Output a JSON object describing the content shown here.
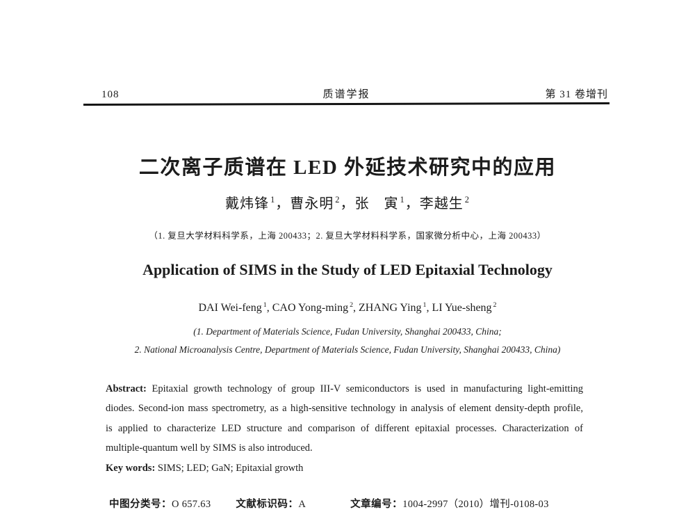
{
  "header": {
    "page_number": "108",
    "journal_title": "质谱学报",
    "issue_info": "第 31 卷增刊"
  },
  "chinese": {
    "title": "二次离子质谱在 LED 外延技术研究中的应用",
    "authors": [
      {
        "name": "戴炜锋",
        "sup": "1",
        "sep": "，"
      },
      {
        "name": "曹永明",
        "sup": "2",
        "sep": "，"
      },
      {
        "name": "张　寅",
        "sup": "1",
        "sep": "，"
      },
      {
        "name": "李越生",
        "sup": "2",
        "sep": ""
      }
    ],
    "affiliation": "（1. 复旦大学材料科学系，上海 200433；2. 复旦大学材料科学系，国家微分析中心，上海 200433）"
  },
  "english": {
    "title": "Application of SIMS in the Study of LED Epitaxial Technology",
    "authors": [
      {
        "name": "DAI Wei-feng",
        "sup": "1",
        "sep": ", "
      },
      {
        "name": "CAO Yong-ming",
        "sup": "2",
        "sep": ", "
      },
      {
        "name": "ZHANG Ying",
        "sup": "1",
        "sep": ", "
      },
      {
        "name": "LI Yue-sheng",
        "sup": "2",
        "sep": ""
      }
    ],
    "affiliation_line1": "(1. Department of Materials Science, Fudan University, Shanghai 200433, China;",
    "affiliation_line2": "2. National Microanalysis Centre, Department of Materials Science, Fudan University, Shanghai 200433, China)"
  },
  "abstract": {
    "label": "Abstract:",
    "line1": " Epitaxial growth technology of group III-V semiconductors is used in manufacturing light-emitting",
    "line2": "diodes. Second-ion mass spectrometry, as a high-sensitive technology in analysis of element density-depth profile,",
    "line3": "is applied to characterize LED structure and comparison of different epitaxial processes. Characterization of",
    "line4": "multiple-quantum well by SIMS is also introduced."
  },
  "keywords": {
    "label": "Key words:",
    "text": " SIMS; LED; GaN; Epitaxial growth"
  },
  "footer_meta": {
    "clc_label": "中图分类号：",
    "clc_value": "O 657.63",
    "doc_code_label": "文献标识码：",
    "doc_code_value": "A",
    "article_id_label": "文章编号：",
    "article_id_value": "1004-2997（2010）增刊-0108-03"
  }
}
